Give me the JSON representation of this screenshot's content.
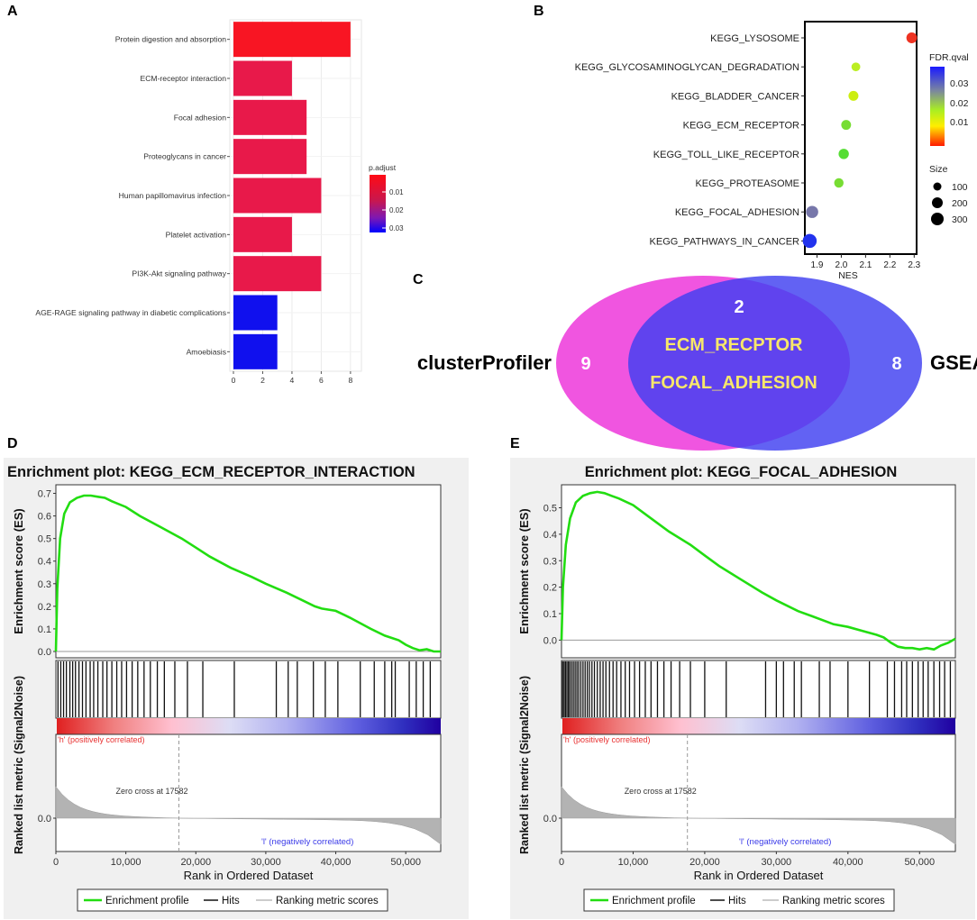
{
  "panels": {
    "a": "A",
    "b": "B",
    "c": "C",
    "d": "D",
    "e": "E"
  },
  "chart_data": [
    {
      "id": "A",
      "type": "bar",
      "orientation": "horizontal",
      "categories": [
        "Protein digestion and absorption",
        "ECM-receptor interaction",
        "Focal adhesion",
        "Proteoglycans in cancer",
        "Human papillomavirus infection",
        "Platelet activation",
        "PI3K-Akt signaling pathway",
        "AGE-RAGE signaling pathway in diabetic complications",
        "Amoebiasis"
      ],
      "values": [
        8,
        4,
        5,
        5,
        6,
        4,
        6,
        3,
        3
      ],
      "bar_colors": [
        "#f81523",
        "#e8194a",
        "#e8194a",
        "#e8194a",
        "#e8194a",
        "#e8194a",
        "#e8194a",
        "#1010ee",
        "#1010ee"
      ],
      "xlim": [
        0,
        8.5
      ],
      "xticks": [
        "0",
        "2",
        "4",
        "6",
        "8"
      ],
      "legend": {
        "title": "p.adjust",
        "labels": [
          "0.01",
          "0.02",
          "0.03"
        ],
        "colors": [
          "#ff0000",
          "#8a17b8",
          "#0000ff"
        ]
      }
    },
    {
      "id": "B",
      "type": "scatter",
      "categories": [
        "KEGG_LYSOSOME",
        "KEGG_GLYCOSAMINOGLYCAN_DEGRADATION",
        "KEGG_BLADDER_CANCER",
        "KEGG_ECM_RECEPTOR",
        "KEGG_TOLL_LIKE_RECEPTOR",
        "KEGG_PROTEASOME",
        "KEGG_FOCAL_ADHESION",
        "KEGG_PATHWAYS_IN_CANCER"
      ],
      "nes": [
        2.29,
        2.06,
        2.05,
        2.02,
        2.01,
        1.99,
        1.88,
        1.87
      ],
      "sizes": [
        120,
        45,
        85,
        80,
        100,
        65,
        200,
        330
      ],
      "colors": [
        "#ee3322",
        "#bbee22",
        "#ccee11",
        "#77dd33",
        "#55dd33",
        "#77dd33",
        "#7777aa",
        "#2233ee"
      ],
      "xlabel": "NES",
      "xlim": [
        1.85,
        2.31
      ],
      "xticks": [
        "1.9",
        "2.0",
        "2.1",
        "2.2",
        "2.3"
      ],
      "legend_color": {
        "title": "FDR.qval",
        "labels": [
          "0.03",
          "0.02",
          "0.01"
        ]
      },
      "legend_size": {
        "title": "Size",
        "labels": [
          "100",
          "200",
          "300"
        ]
      }
    },
    {
      "id": "C",
      "type": "venn",
      "left_label": "clusterProfiler",
      "right_label": "GSEA",
      "left_count": "9",
      "right_count": "8",
      "overlap_count": "2",
      "overlap_items": [
        "ECM_RECPTOR",
        "FOCAL_ADHESION"
      ]
    },
    {
      "id": "D",
      "type": "line",
      "title": "Enrichment plot: KEGG_ECM_RECEPTOR_INTERACTION",
      "ylabel": "Enrichment score (ES)",
      "ylabel2": "Ranked list metric (Signal2Noise)",
      "xlabel": "Rank in Ordered Dataset",
      "xlim": [
        0,
        55000
      ],
      "ylim": [
        -0.02,
        0.73
      ],
      "yticks": [
        "0.0",
        "0.1",
        "0.2",
        "0.3",
        "0.4",
        "0.5",
        "0.6",
        "0.7"
      ],
      "xticks": [
        "0",
        "10,000",
        "20,000",
        "30,000",
        "40,000",
        "50,000"
      ],
      "x": [
        0,
        200,
        600,
        1200,
        2000,
        3000,
        4000,
        5000,
        6000,
        7000,
        8000,
        10000,
        12000,
        15000,
        18000,
        20000,
        22000,
        25000,
        28000,
        30000,
        33000,
        35000,
        37000,
        38000,
        40000,
        42000,
        45000,
        47000,
        49000,
        50000,
        51000,
        52000,
        53000,
        54000,
        55000
      ],
      "es": [
        0.0,
        0.28,
        0.5,
        0.61,
        0.66,
        0.68,
        0.69,
        0.69,
        0.685,
        0.68,
        0.665,
        0.64,
        0.6,
        0.55,
        0.5,
        0.46,
        0.42,
        0.37,
        0.33,
        0.3,
        0.26,
        0.23,
        0.2,
        0.19,
        0.18,
        0.15,
        0.1,
        0.07,
        0.05,
        0.03,
        0.015,
        0.005,
        0.01,
        0.0,
        0.0
      ],
      "hits": [
        300,
        700,
        1100,
        1500,
        2000,
        2400,
        2800,
        3300,
        3800,
        4300,
        4900,
        5400,
        6000,
        6700,
        7300,
        8000,
        8700,
        9400,
        10100,
        10900,
        11700,
        12600,
        13500,
        14500,
        15500,
        17000,
        18800,
        21000,
        25500,
        31500,
        33200,
        34500,
        36800,
        38500,
        40300,
        43500,
        45500,
        47000,
        48000,
        48500,
        50500,
        51500,
        52500,
        53500
      ],
      "heat_colors": [
        "#e02020",
        "#f08080",
        "#ffc0d0",
        "#ddddf5",
        "#b0b0f0",
        "#6060e0",
        "#3030c0",
        "#2000a0"
      ],
      "pos_label": "'h' (positively correlated)",
      "neg_label": "'l' (negatively correlated)",
      "zero_cross": "Zero cross at 17582",
      "zero_cross_x": 17582,
      "metric_tick": "0.0",
      "legend": [
        "Enrichment profile",
        "Hits",
        "Ranking metric scores"
      ]
    },
    {
      "id": "E",
      "type": "line",
      "title": "Enrichment plot: KEGG_FOCAL_ADHESION",
      "ylabel": "Enrichment score (ES)",
      "ylabel2": "Ranked list metric (Signal2Noise)",
      "xlabel": "Rank in Ordered Dataset",
      "xlim": [
        0,
        55000
      ],
      "ylim": [
        -0.06,
        0.58
      ],
      "yticks": [
        "0.0",
        "0.1",
        "0.2",
        "0.3",
        "0.4",
        "0.5"
      ],
      "xticks": [
        "0",
        "10,000",
        "20,000",
        "30,000",
        "40,000",
        "50,000"
      ],
      "x": [
        0,
        200,
        600,
        1200,
        2000,
        3000,
        4000,
        5000,
        6000,
        7000,
        8000,
        10000,
        12000,
        15000,
        18000,
        20000,
        22000,
        25000,
        28000,
        30000,
        33000,
        35000,
        38000,
        40000,
        42000,
        44000,
        45000,
        46000,
        47000,
        48000,
        49000,
        50000,
        51000,
        52000,
        53000,
        54000,
        55000
      ],
      "es": [
        0.0,
        0.2,
        0.36,
        0.46,
        0.52,
        0.545,
        0.555,
        0.56,
        0.555,
        0.545,
        0.535,
        0.51,
        0.47,
        0.41,
        0.36,
        0.32,
        0.28,
        0.23,
        0.18,
        0.15,
        0.11,
        0.09,
        0.06,
        0.05,
        0.035,
        0.02,
        0.01,
        -0.01,
        -0.025,
        -0.03,
        -0.03,
        -0.035,
        -0.03,
        -0.035,
        -0.02,
        -0.01,
        0.005
      ],
      "hits": [
        150,
        350,
        550,
        750,
        950,
        1150,
        1400,
        1650,
        1900,
        2150,
        2400,
        2700,
        3000,
        3300,
        3600,
        3900,
        4250,
        4600,
        5000,
        5400,
        5800,
        6200,
        6700,
        7200,
        7700,
        8300,
        8900,
        9500,
        10200,
        10900,
        11700,
        12500,
        13400,
        14300,
        15300,
        16500,
        18000,
        20000,
        23000,
        28500,
        30000,
        31000,
        32500,
        33500,
        36000,
        37500,
        40000,
        43000,
        45500,
        46500,
        47500,
        48200,
        49000,
        49800,
        50500,
        51200,
        52000,
        52800,
        53500,
        54300
      ],
      "heat_colors": [
        "#e02020",
        "#f08080",
        "#ffc0d0",
        "#ddddf5",
        "#b0b0f0",
        "#6060e0",
        "#3030c0",
        "#2000a0"
      ],
      "pos_label": "'h' (positively correlated)",
      "neg_label": "'l' (negatively correlated)",
      "zero_cross": "Zero cross at 17582",
      "zero_cross_x": 17582,
      "metric_tick": "0.0",
      "legend": [
        "Enrichment profile",
        "Hits",
        "Ranking metric scores"
      ]
    }
  ]
}
